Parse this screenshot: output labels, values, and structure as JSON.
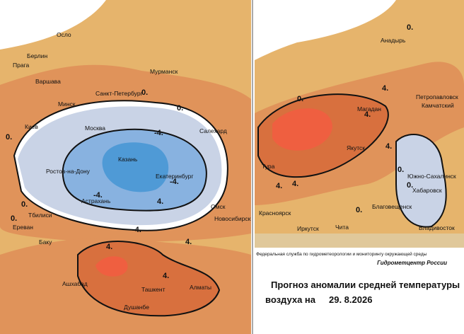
{
  "left_map": {
    "cities": [
      "Осло",
      "Берлин",
      "Прага",
      "Варшава",
      "Мурманск",
      "Санкт-Петербург",
      "Минск",
      "Киев",
      "Москва",
      "Салехард",
      "Казань",
      "Ростов-на-Дону",
      "Екатеринбург",
      "Астрахань",
      "Омск",
      "Тбилиси",
      "Новосибирск",
      "Ереван",
      "Баку",
      "Ашхабад",
      "Ташкент",
      "Алматы",
      "Душанбе"
    ],
    "contours": [
      "0.",
      "0.",
      "0.",
      "0.",
      "0.",
      "-4.",
      "-4.",
      "-4.",
      "-4.",
      "4.",
      "4.",
      "4.",
      "4."
    ]
  },
  "right_map": {
    "cities": [
      "Анадырь",
      "Петропавловск",
      "Камчатский",
      "Магадан",
      "Якутск",
      "Тура",
      "Южно-Сахалинск",
      "Хабаровск",
      "Красноярск",
      "Благовещенск",
      "Иркутск",
      "Чита",
      "Владивосток"
    ],
    "contours": [
      "4.",
      "4.",
      "4.",
      "4.",
      "4.",
      "0.",
      "0.",
      "0.",
      "0.",
      "0."
    ]
  },
  "caption": {
    "agency": "Федеральная служба по гидрометеорологии и мониторингу окружающей среды",
    "center": "Гидрометцентр России",
    "title": "Прогноз аномалии средней температуры",
    "date_prefix": "воздуха на",
    "date": "29. 8.2026"
  }
}
